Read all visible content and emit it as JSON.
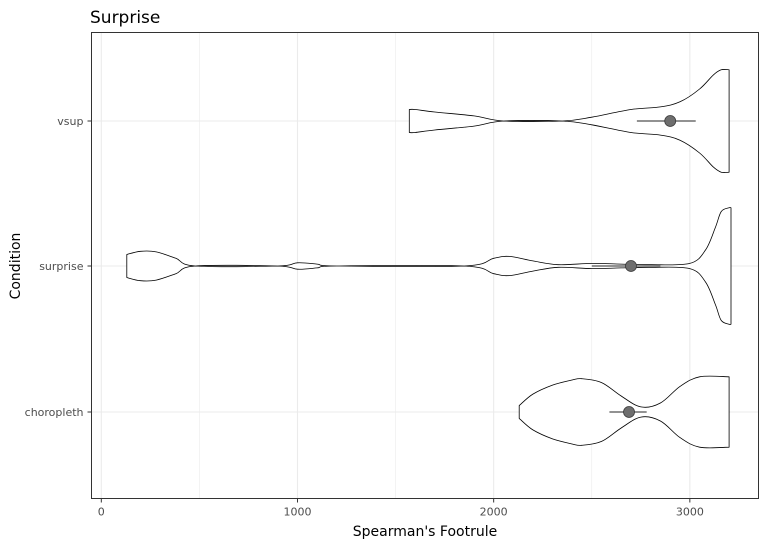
{
  "chart_data": {
    "type": "violin",
    "title": "Surprise",
    "xlabel": "Spearman's Footrule",
    "ylabel": "Condition",
    "xlim": [
      -50,
      3350
    ],
    "x_ticks": [
      0,
      1000,
      2000,
      3000
    ],
    "x_tick_labels": [
      "0",
      "1000",
      "2000",
      "3000"
    ],
    "categories": [
      "vsup",
      "surprise",
      "choropleth"
    ],
    "grid": true,
    "legend": "none",
    "colors": {
      "violin_fill": "#ffffff",
      "violin_stroke": "#000000",
      "point": "#6e6e6e",
      "grid": "#ebebeb"
    },
    "series": [
      {
        "category": "vsup",
        "point_estimate": 2900,
        "interval": [
          2730,
          3030
        ],
        "density": [
          [
            1570,
            0.18
          ],
          [
            1600,
            0.18
          ],
          [
            1700,
            0.14
          ],
          [
            1900,
            0.08
          ],
          [
            2050,
            0.0
          ],
          [
            2350,
            0.0
          ],
          [
            2500,
            0.06
          ],
          [
            2700,
            0.18
          ],
          [
            2850,
            0.22
          ],
          [
            2950,
            0.3
          ],
          [
            3050,
            0.5
          ],
          [
            3120,
            0.72
          ],
          [
            3160,
            0.8
          ],
          [
            3200,
            0.8
          ]
        ]
      },
      {
        "category": "surprise",
        "point_estimate": 2700,
        "interval": [
          2500,
          2850
        ],
        "density": [
          [
            130,
            0.18
          ],
          [
            200,
            0.23
          ],
          [
            280,
            0.22
          ],
          [
            380,
            0.12
          ],
          [
            480,
            0.0
          ],
          [
            900,
            0.0
          ],
          [
            1000,
            0.05
          ],
          [
            1100,
            0.03
          ],
          [
            1200,
            0.0
          ],
          [
            1850,
            0.0
          ],
          [
            2000,
            0.12
          ],
          [
            2080,
            0.15
          ],
          [
            2200,
            0.08
          ],
          [
            2330,
            0.02
          ],
          [
            2500,
            0.04
          ],
          [
            2650,
            0.03
          ],
          [
            2800,
            0.02
          ],
          [
            3000,
            0.04
          ],
          [
            3080,
            0.25
          ],
          [
            3130,
            0.6
          ],
          [
            3160,
            0.85
          ],
          [
            3200,
            0.91
          ],
          [
            3210,
            0.91
          ]
        ]
      },
      {
        "category": "choropleth",
        "point_estimate": 2690,
        "interval": [
          2590,
          2780
        ],
        "density": [
          [
            2130,
            0.1
          ],
          [
            2200,
            0.28
          ],
          [
            2300,
            0.42
          ],
          [
            2400,
            0.5
          ],
          [
            2450,
            0.52
          ],
          [
            2550,
            0.46
          ],
          [
            2650,
            0.25
          ],
          [
            2750,
            0.08
          ],
          [
            2850,
            0.14
          ],
          [
            2950,
            0.4
          ],
          [
            3050,
            0.55
          ],
          [
            3200,
            0.55
          ]
        ]
      }
    ]
  }
}
